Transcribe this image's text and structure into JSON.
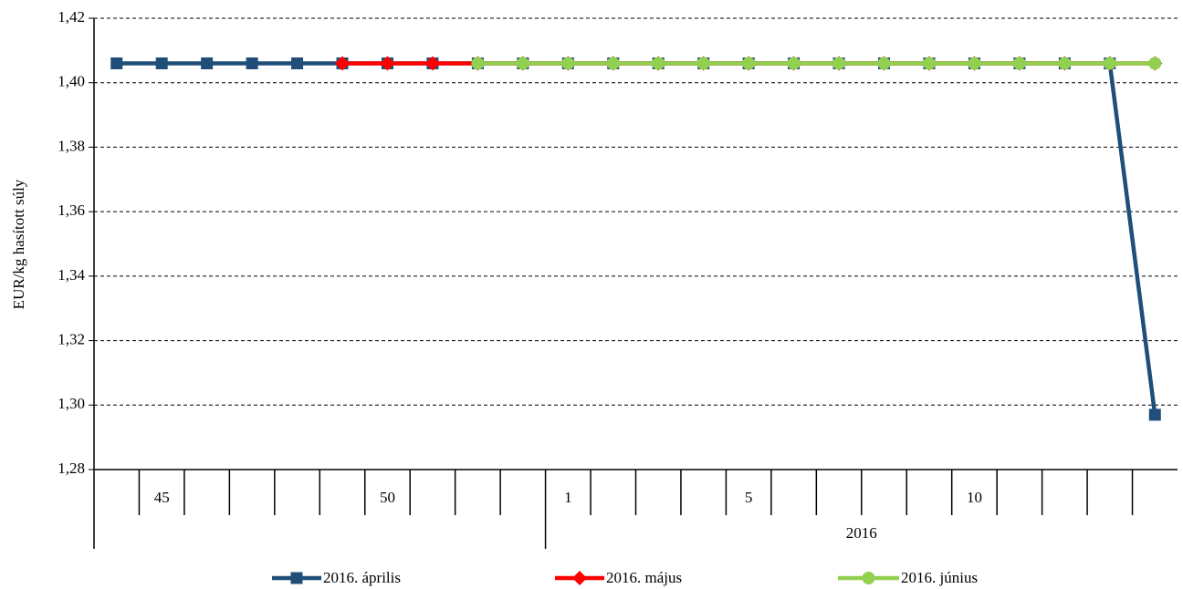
{
  "chart_data": {
    "type": "line",
    "y_axis_label": "EUR/kg hasított súly",
    "categories": [
      null,
      "45",
      null,
      null,
      null,
      null,
      "50",
      null,
      null,
      null,
      "1",
      null,
      null,
      null,
      "5",
      null,
      null,
      null,
      null,
      "10",
      null,
      null,
      null,
      null
    ],
    "categories_level2": [
      null,
      null,
      null,
      null,
      null,
      null,
      null,
      null,
      null,
      null,
      "2016",
      "2016",
      "2016",
      "2016",
      "2016",
      "2016",
      "2016",
      "2016",
      "2016",
      "2016",
      "2016",
      "2016",
      "2016",
      "2016"
    ],
    "series": [
      {
        "name": "2016. április",
        "color": "#1f4e79",
        "marker": "square",
        "values": [
          1.406,
          1.406,
          1.406,
          1.406,
          1.406,
          1.406,
          1.406,
          1.406,
          1.406,
          1.406,
          1.406,
          1.406,
          1.406,
          1.406,
          1.406,
          1.406,
          1.406,
          1.406,
          1.406,
          1.406,
          1.406,
          1.406,
          1.406,
          1.297
        ]
      },
      {
        "name": "2016. május",
        "color": "#ff0000",
        "marker": "diamond",
        "values": [
          null,
          null,
          null,
          null,
          null,
          1.406,
          1.406,
          1.406,
          1.406,
          1.406,
          1.406,
          1.406,
          1.406,
          1.406,
          1.406,
          1.406,
          1.406,
          1.406,
          1.406,
          1.406,
          1.406,
          1.406,
          1.406,
          1.406
        ]
      },
      {
        "name": "2016. június",
        "color": "#92d050",
        "marker": "circle",
        "values": [
          null,
          null,
          null,
          null,
          null,
          null,
          null,
          null,
          1.406,
          1.406,
          1.406,
          1.406,
          1.406,
          1.406,
          1.406,
          1.406,
          1.406,
          1.406,
          1.406,
          1.406,
          1.406,
          1.406,
          1.406,
          1.406
        ]
      }
    ],
    "ylim": [
      1.28,
      1.42
    ],
    "yticks": [
      {
        "value": 1.28,
        "label": "1,28"
      },
      {
        "value": 1.3,
        "label": "1,30"
      },
      {
        "value": 1.32,
        "label": "1,32"
      },
      {
        "value": 1.34,
        "label": "1,34"
      },
      {
        "value": 1.36,
        "label": "1,36"
      },
      {
        "value": 1.38,
        "label": "1,38"
      },
      {
        "value": 1.4,
        "label": "1,40"
      },
      {
        "value": 1.42,
        "label": "1,42"
      }
    ],
    "grid": true,
    "legend": "bottom"
  }
}
